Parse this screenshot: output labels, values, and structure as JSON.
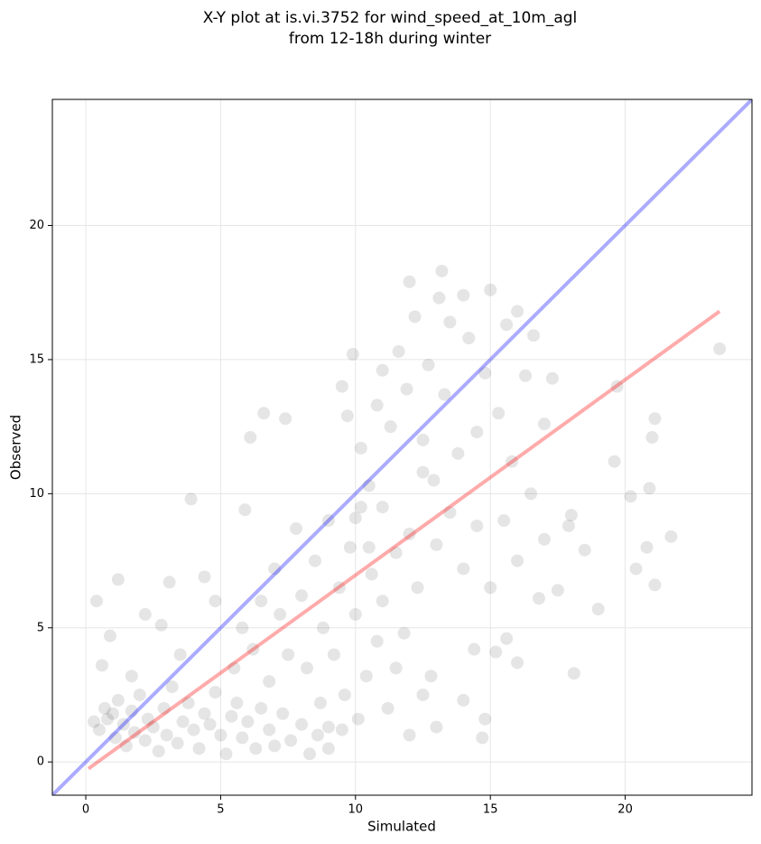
{
  "chart_data": {
    "type": "scatter",
    "title": [
      "X-Y plot at is.vi.3752 for wind_speed_at_10m_agl",
      "from 12-18h during winter"
    ],
    "xlabel": "Simulated",
    "ylabel": "Observed",
    "xlim": [
      -1.24,
      24.7
    ],
    "ylim": [
      -1.24,
      24.7
    ],
    "xticks": [
      0,
      5,
      10,
      15,
      20
    ],
    "yticks": [
      0,
      5,
      10,
      15,
      20
    ],
    "grid": true,
    "color": "#000000",
    "opacity": 0.1,
    "x": [
      0.3,
      0.5,
      0.7,
      0.8,
      1.0,
      1.1,
      1.2,
      1.4,
      1.5,
      1.7,
      1.8,
      2.0,
      2.2,
      2.3,
      2.5,
      2.7,
      2.9,
      3.0,
      3.2,
      3.4,
      3.6,
      3.8,
      4.0,
      4.2,
      4.4,
      4.6,
      4.8,
      5.0,
      5.2,
      5.4,
      5.6,
      5.8,
      6.0,
      6.3,
      6.5,
      6.8,
      7.0,
      7.3,
      7.6,
      8.0,
      8.3,
      8.6,
      9.0,
      9.5,
      0.4,
      1.2,
      0.9,
      1.7,
      0.6,
      2.2,
      2.8,
      3.1,
      3.9,
      4.4,
      3.5,
      4.8,
      6.6,
      7.4,
      6.1,
      5.9,
      5.5,
      5.8,
      6.2,
      6.5,
      6.8,
      7.0,
      7.2,
      7.5,
      7.8,
      8.0,
      8.2,
      8.5,
      8.8,
      9.0,
      9.2,
      9.4,
      9.6,
      9.8,
      10.0,
      10.2,
      10.4,
      10.6,
      10.8,
      11.0,
      11.2,
      11.5,
      12.0,
      12.5,
      13.0,
      11.8,
      12.3,
      9.0,
      10.1,
      8.7,
      9.5,
      9.7,
      9.9,
      10.2,
      10.5,
      10.8,
      11.0,
      11.3,
      11.6,
      11.9,
      12.0,
      12.2,
      12.5,
      12.7,
      12.9,
      13.1,
      13.3,
      13.5,
      13.8,
      14.0,
      14.2,
      14.5,
      14.8,
      15.0,
      15.3,
      15.6,
      15.8,
      16.0,
      16.3,
      16.6,
      17.0,
      17.3,
      13.2,
      10.0,
      10.5,
      11.0,
      11.5,
      12.0,
      12.5,
      13.0,
      13.5,
      14.0,
      14.5,
      15.0,
      15.5,
      16.0,
      16.5,
      17.0,
      17.5,
      18.0,
      18.5,
      19.0,
      19.6,
      19.7,
      20.2,
      20.4,
      20.8,
      20.9,
      21.0,
      21.1,
      21.1,
      21.7,
      23.5,
      18.1,
      16.0,
      15.6,
      15.2,
      14.8,
      14.7,
      14.0,
      14.4,
      12.8,
      17.9,
      16.8
    ],
    "values": [
      1.5,
      1.2,
      2.0,
      1.6,
      1.8,
      0.9,
      2.3,
      1.4,
      0.6,
      1.9,
      1.1,
      2.5,
      0.8,
      1.6,
      1.3,
      0.4,
      2.0,
      1.0,
      2.8,
      0.7,
      1.5,
      2.2,
      1.2,
      0.5,
      1.8,
      1.4,
      2.6,
      1.0,
      0.3,
      1.7,
      2.2,
      0.9,
      1.5,
      0.5,
      2.0,
      1.2,
      0.6,
      1.8,
      0.8,
      1.4,
      0.3,
      1.0,
      0.5,
      1.2,
      6.0,
      6.8,
      4.7,
      3.2,
      3.6,
      5.5,
      5.1,
      6.7,
      9.8,
      6.9,
      4.0,
      6.0,
      13.0,
      12.8,
      12.1,
      9.4,
      3.5,
      5.0,
      4.2,
      6.0,
      3.0,
      7.2,
      5.5,
      4.0,
      8.7,
      6.2,
      3.5,
      7.5,
      5.0,
      9.0,
      4.0,
      6.5,
      2.5,
      8.0,
      5.5,
      9.5,
      3.2,
      7.0,
      4.5,
      6.0,
      2.0,
      3.5,
      1.0,
      2.5,
      1.3,
      4.8,
      6.5,
      1.3,
      1.6,
      2.2,
      14.0,
      12.9,
      15.2,
      11.7,
      10.3,
      13.3,
      14.6,
      12.5,
      15.3,
      13.9,
      17.9,
      16.6,
      12.0,
      14.8,
      10.5,
      17.3,
      13.7,
      16.4,
      11.5,
      17.4,
      15.8,
      12.3,
      14.5,
      17.6,
      13.0,
      16.3,
      11.2,
      16.8,
      14.4,
      15.9,
      12.6,
      14.3,
      18.3,
      9.1,
      8.0,
      9.5,
      7.8,
      8.5,
      10.8,
      8.1,
      9.3,
      7.2,
      8.8,
      6.5,
      9.0,
      7.5,
      10.0,
      8.3,
      6.4,
      9.2,
      7.9,
      5.7,
      11.2,
      14.0,
      9.9,
      7.2,
      8.0,
      10.2,
      12.1,
      12.8,
      6.6,
      8.4,
      15.4,
      3.3,
      3.7,
      4.6,
      4.1,
      1.6,
      0.9,
      2.3,
      4.2,
      3.2,
      8.8,
      6.1
    ],
    "lines": [
      {
        "color": "#0000ff",
        "x": [
          -1.24,
          24.7
        ],
        "values": [
          -1.24,
          24.7
        ]
      },
      {
        "color": "#ff0000",
        "x": [
          0.1,
          23.5
        ],
        "values": [
          -0.25,
          16.8
        ]
      }
    ]
  }
}
